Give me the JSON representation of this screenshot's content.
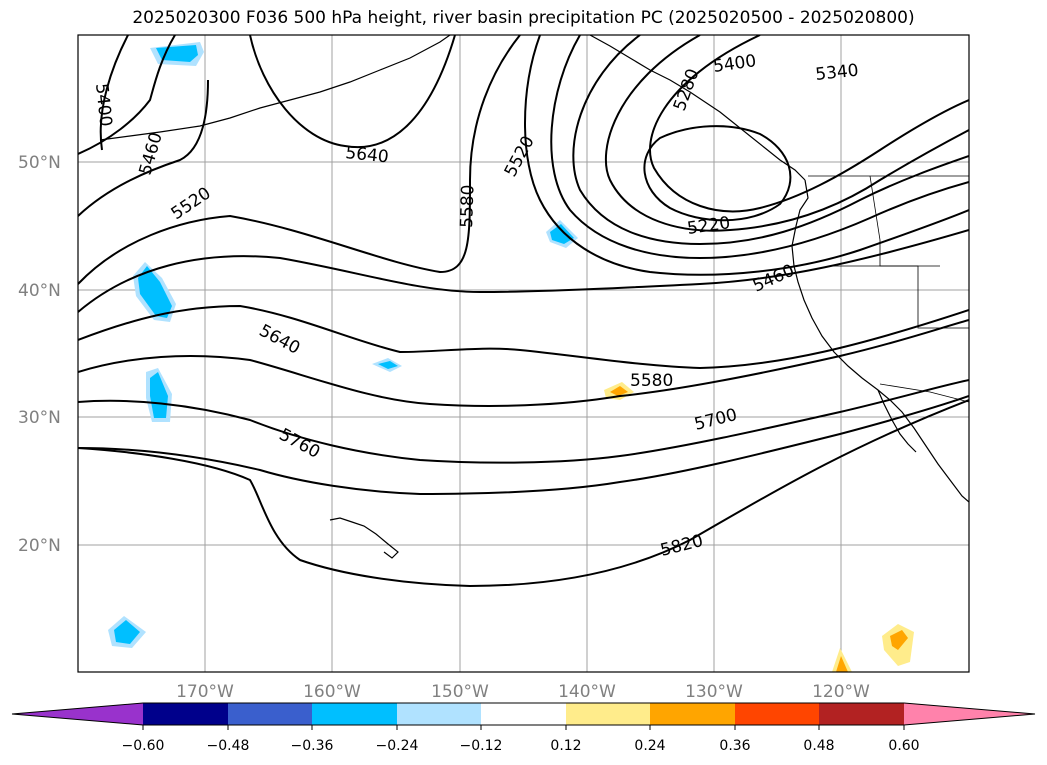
{
  "title": "2025020300 F036 500 hPa height, river basin precipitation PC (2025020500 - 2025020800)",
  "latitudes": [
    {
      "value": 50,
      "label": "50°N"
    },
    {
      "value": 40,
      "label": "40°N"
    },
    {
      "value": 30,
      "label": "30°N"
    },
    {
      "value": 20,
      "label": "20°N"
    }
  ],
  "longitudes": [
    {
      "value": -170,
      "label": "170°W"
    },
    {
      "value": -160,
      "label": "160°W"
    },
    {
      "value": -150,
      "label": "150°W"
    },
    {
      "value": -140,
      "label": "140°W"
    },
    {
      "value": -130,
      "label": "130°W"
    },
    {
      "value": -120,
      "label": "120°W"
    }
  ],
  "contour_labels": [
    "5400",
    "5460",
    "5520",
    "5640",
    "5580",
    "5520",
    "5400",
    "5340",
    "5280",
    "5220",
    "5460",
    "5640",
    "5580",
    "5700",
    "5760",
    "5820"
  ],
  "colorbar": {
    "ticks": [
      "−0.60",
      "−0.48",
      "−0.36",
      "−0.24",
      "−0.12",
      "0.12",
      "0.24",
      "0.36",
      "0.48",
      "0.60"
    ],
    "colors": [
      "#9932cc",
      "#00008b",
      "#3a5fcd",
      "#00bfff",
      "#b0e2ff",
      "#ffffff",
      "#ffec8b",
      "#ffa500",
      "#ff4500",
      "#b22222",
      "#ff82ab"
    ]
  }
}
